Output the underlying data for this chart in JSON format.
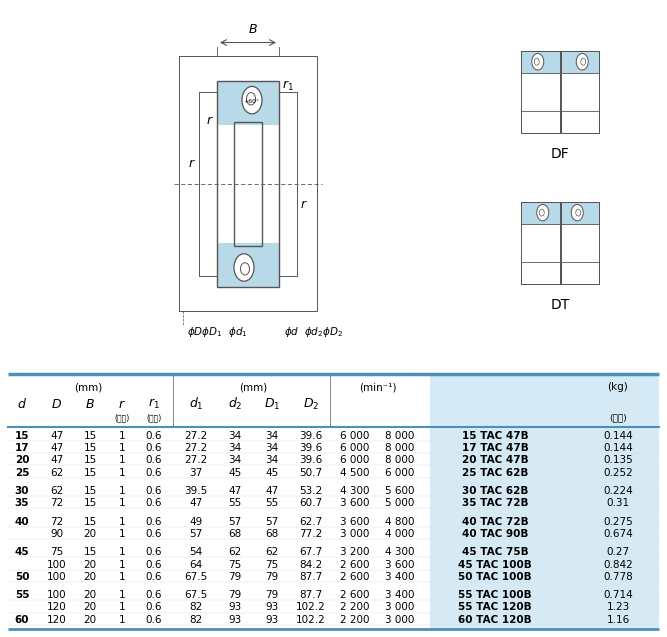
{
  "bg_color": "#ffffff",
  "light_blue": "#b8d9e8",
  "border_col": "#555555",
  "blue_line": "#4a90b8",
  "rows": [
    {
      "d": "15",
      "D": "47",
      "B": "15",
      "r": "1",
      "r1": "0.6",
      "d1": "27.2",
      "d2": "34",
      "D1": "34",
      "D2": "39.6",
      "n1": "6 000",
      "n2": "8 000",
      "name": "15 TAC 47B",
      "mass": "0.144",
      "d_bold": true,
      "gap": false
    },
    {
      "d": "17",
      "D": "47",
      "B": "15",
      "r": "1",
      "r1": "0.6",
      "d1": "27.2",
      "d2": "34",
      "D1": "34",
      "D2": "39.6",
      "n1": "6 000",
      "n2": "8 000",
      "name": "17 TAC 47B",
      "mass": "0.144",
      "d_bold": true,
      "gap": false
    },
    {
      "d": "20",
      "D": "47",
      "B": "15",
      "r": "1",
      "r1": "0.6",
      "d1": "27.2",
      "d2": "34",
      "D1": "34",
      "D2": "39.6",
      "n1": "6 000",
      "n2": "8 000",
      "name": "20 TAC 47B",
      "mass": "0.135",
      "d_bold": true,
      "gap": false
    },
    {
      "d": "25",
      "D": "62",
      "B": "15",
      "r": "1",
      "r1": "0.6",
      "d1": "37",
      "d2": "45",
      "D1": "45",
      "D2": "50.7",
      "n1": "4 500",
      "n2": "6 000",
      "name": "25 TAC 62B",
      "mass": "0.252",
      "d_bold": true,
      "gap": true
    },
    {
      "d": "30",
      "D": "62",
      "B": "15",
      "r": "1",
      "r1": "0.6",
      "d1": "39.5",
      "d2": "47",
      "D1": "47",
      "D2": "53.2",
      "n1": "4 300",
      "n2": "5 600",
      "name": "30 TAC 62B",
      "mass": "0.224",
      "d_bold": true,
      "gap": false
    },
    {
      "d": "35",
      "D": "72",
      "B": "15",
      "r": "1",
      "r1": "0.6",
      "d1": "47",
      "d2": "55",
      "D1": "55",
      "D2": "60.7",
      "n1": "3 600",
      "n2": "5 000",
      "name": "35 TAC 72B",
      "mass": "0.31",
      "d_bold": true,
      "gap": true
    },
    {
      "d": "40",
      "D": "72",
      "B": "15",
      "r": "1",
      "r1": "0.6",
      "d1": "49",
      "d2": "57",
      "D1": "57",
      "D2": "62.7",
      "n1": "3 600",
      "n2": "4 800",
      "name": "40 TAC 72B",
      "mass": "0.275",
      "d_bold": true,
      "gap": false
    },
    {
      "d": "",
      "D": "90",
      "B": "20",
      "r": "1",
      "r1": "0.6",
      "d1": "57",
      "d2": "68",
      "D1": "68",
      "D2": "77.2",
      "n1": "3 000",
      "n2": "4 000",
      "name": "40 TAC 90B",
      "mass": "0.674",
      "d_bold": false,
      "gap": true
    },
    {
      "d": "45",
      "D": "75",
      "B": "15",
      "r": "1",
      "r1": "0.6",
      "d1": "54",
      "d2": "62",
      "D1": "62",
      "D2": "67.7",
      "n1": "3 200",
      "n2": "4 300",
      "name": "45 TAC 75B",
      "mass": "0.27",
      "d_bold": true,
      "gap": false
    },
    {
      "d": "",
      "D": "100",
      "B": "20",
      "r": "1",
      "r1": "0.6",
      "d1": "64",
      "d2": "75",
      "D1": "75",
      "D2": "84.2",
      "n1": "2 600",
      "n2": "3 600",
      "name": "45 TAC 100B",
      "mass": "0.842",
      "d_bold": false,
      "gap": false
    },
    {
      "d": "50",
      "D": "100",
      "B": "20",
      "r": "1",
      "r1": "0.6",
      "d1": "67.5",
      "d2": "79",
      "D1": "79",
      "D2": "87.7",
      "n1": "2 600",
      "n2": "3 400",
      "name": "50 TAC 100B",
      "mass": "0.778",
      "d_bold": true,
      "gap": true
    },
    {
      "d": "55",
      "D": "100",
      "B": "20",
      "r": "1",
      "r1": "0.6",
      "d1": "67.5",
      "d2": "79",
      "D1": "79",
      "D2": "87.7",
      "n1": "2 600",
      "n2": "3 400",
      "name": "55 TAC 100B",
      "mass": "0.714",
      "d_bold": true,
      "gap": false
    },
    {
      "d": "",
      "D": "120",
      "B": "20",
      "r": "1",
      "r1": "0.6",
      "d1": "82",
      "d2": "93",
      "D1": "93",
      "D2": "102.2",
      "n1": "2 200",
      "n2": "3 000",
      "name": "55 TAC 120B",
      "mass": "1.23",
      "d_bold": false,
      "gap": false
    },
    {
      "d": "60",
      "D": "120",
      "B": "20",
      "r": "1",
      "r1": "0.6",
      "d1": "82",
      "d2": "93",
      "D1": "93",
      "D2": "102.2",
      "n1": "2 200",
      "n2": "3 000",
      "name": "60 TAC 120B",
      "mass": "1.16",
      "d_bold": true,
      "gap": false
    }
  ]
}
